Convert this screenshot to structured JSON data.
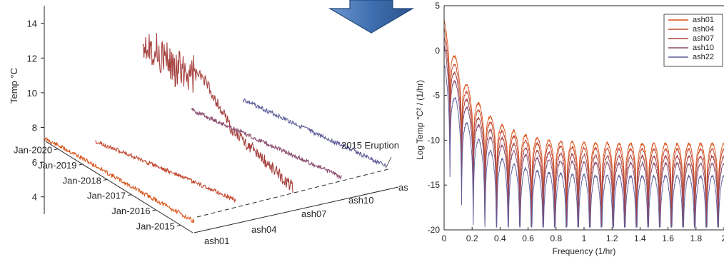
{
  "colors": {
    "ash01": "#d95319",
    "ash04": "#c4482f",
    "ash07": "#a6423f",
    "ash10": "#8a4a6e",
    "ash22": "#5d5c99",
    "arrow": "#3f6fb0"
  },
  "icons": {
    "transition": "arrow-down-icon"
  },
  "chart_data": [
    {
      "type": "line",
      "view": "3d-waterfall",
      "zlabel": "Temp °C",
      "zticks": [
        4,
        6,
        8,
        10,
        12,
        14
      ],
      "zlim": [
        3,
        15
      ],
      "date_ticks": [
        "Jan-2020",
        "Jan-2019",
        "Jan-2018",
        "Jan-2017",
        "Jan-2016",
        "Jan-2015"
      ],
      "sensor_ticks": [
        "ash01",
        "ash04",
        "ash07",
        "ash10",
        "as"
      ],
      "annotation": "2015 Eruption",
      "series": [
        {
          "name": "ash01",
          "start": "Jan-2015",
          "end": "Jan-2020",
          "level": [
            3.6,
            3.9,
            3.4,
            3.0,
            2.8,
            2.6
          ]
        },
        {
          "name": "ash04",
          "start": "Jan-2015",
          "end": "Jan-2019",
          "level": [
            3.5,
            3.7,
            3.6,
            3.3,
            3.1
          ]
        },
        {
          "name": "ash07",
          "start": "Jan-2015",
          "end": "Jan-2020",
          "level": [
            10.5,
            9.5,
            12.8,
            6.0,
            5.2,
            4.4
          ]
        },
        {
          "name": "ash10",
          "start": "Jan-2015",
          "end": "Jan-2019",
          "level": [
            5.6,
            5.2,
            4.8,
            4.4,
            4.0
          ]
        },
        {
          "name": "ash22",
          "start": "Jan-2015",
          "end": "Jan-2019",
          "level": [
            6.2,
            5.8,
            5.4,
            5.0,
            4.6
          ]
        }
      ]
    },
    {
      "type": "line",
      "xlabel": "Frequency (1/hr)",
      "ylabel": "Log Temp °C² / (1/hr)",
      "xlim": [
        0,
        2
      ],
      "ylim": [
        -20,
        5
      ],
      "xticks": [
        0,
        0.2,
        0.4,
        0.6,
        0.8,
        1,
        1.2,
        1.4,
        1.6,
        1.8,
        2
      ],
      "xtick_labels": [
        "0",
        "0.2",
        "0.4",
        "0.6",
        "0.8",
        "1",
        "1.2",
        "1.4",
        "1.6",
        "1.8",
        "2"
      ],
      "yticks": [
        5,
        0,
        -5,
        -10,
        -15,
        -20
      ],
      "legend": "top-right",
      "series": [
        {
          "name": "ash01",
          "peak_at_0": 3.5,
          "floor": -10.4,
          "trough_depth": 3.0
        },
        {
          "name": "ash04",
          "peak_at_0": 2.5,
          "floor": -11.0,
          "trough_depth": 3.2
        },
        {
          "name": "ash07",
          "peak_at_0": 1.5,
          "floor": -11.8,
          "trough_depth": 3.4
        },
        {
          "name": "ash10",
          "peak_at_0": 0.5,
          "floor": -12.6,
          "trough_depth": 3.6
        },
        {
          "name": "ash22",
          "peak_at_0": -1.5,
          "floor": -14.0,
          "trough_depth": 4.2
        }
      ]
    }
  ]
}
